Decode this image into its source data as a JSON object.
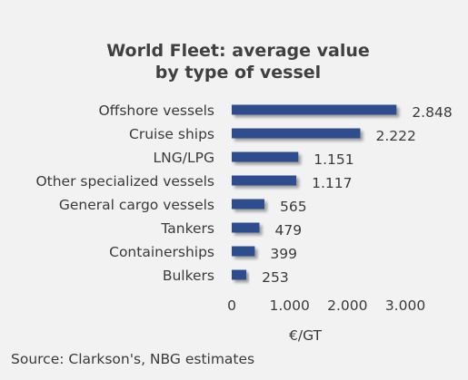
{
  "chart_data": {
    "type": "bar",
    "orientation": "horizontal",
    "title": "World Fleet: average value by type of vessel",
    "title_lines": [
      "World Fleet: average value",
      "by type of vessel"
    ],
    "categories": [
      "Offshore vessels",
      "Cruise ships",
      "LNG/LPG",
      "Other specialized vessels",
      "General cargo vessels",
      "Tankers",
      "Containerships",
      "Bulkers"
    ],
    "values": [
      2848,
      2222,
      1151,
      1117,
      565,
      479,
      399,
      253
    ],
    "value_labels": [
      "2.848",
      "2.222",
      "1.151",
      "1.117",
      "565",
      "479",
      "399",
      "253"
    ],
    "xlim": [
      0,
      3000
    ],
    "xticks": [
      0,
      1000,
      2000,
      3000
    ],
    "xtick_labels": [
      "0",
      "1.000",
      "2.000",
      "3.000"
    ],
    "xlabel": "€/GT",
    "ylabel": "",
    "grid": false,
    "bar_color": "#2e4d8f",
    "source": "Source: Clarkson's, NBG estimates"
  }
}
